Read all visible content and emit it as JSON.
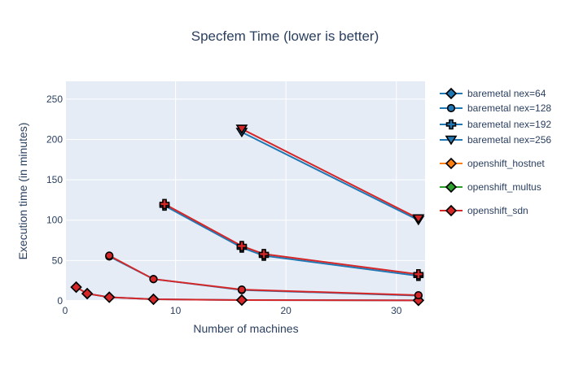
{
  "chart_data": {
    "type": "line",
    "title": "Specfem Time (lower is better)",
    "xlabel": "Number of machines",
    "ylabel": "Execution time (in minutes)",
    "xlim": [
      0,
      32.6
    ],
    "ylim": [
      0,
      272
    ],
    "x_ticks": [
      0,
      10,
      20,
      30
    ],
    "y_ticks": [
      0,
      50,
      100,
      150,
      200,
      250
    ],
    "grid": true,
    "legend_position": "right",
    "colors": {
      "plot_background": "#e5ecf6",
      "grid": "#ffffff",
      "baremetal": "#1f77b4",
      "openshift_hostnet": "#ff7f0e",
      "openshift_multus": "#2ca02c",
      "openshift_sdn": "#d62728",
      "marker_edge": "#000000",
      "text": "#2a3f5f"
    },
    "legend": [
      {
        "label": "baremetal nex=64",
        "color": "#1f77b4",
        "symbol": "diamond"
      },
      {
        "label": "baremetal nex=128",
        "color": "#1f77b4",
        "symbol": "circle"
      },
      {
        "label": "baremetal nex=192",
        "color": "#1f77b4",
        "symbol": "cross"
      },
      {
        "label": "baremetal nex=256",
        "color": "#1f77b4",
        "symbol": "triangle-down"
      },
      {
        "label": "openshift_hostnet",
        "color": "#ff7f0e",
        "symbol": "diamond"
      },
      {
        "label": "openshift_multus",
        "color": "#2ca02c",
        "symbol": "diamond"
      },
      {
        "label": "openshift_sdn",
        "color": "#d62728",
        "symbol": "diamond"
      }
    ],
    "series": [
      {
        "group": "baremetal",
        "nex": 64,
        "symbol": "diamond",
        "color": "#1f77b4",
        "x": [
          1,
          2,
          4,
          8,
          16,
          32
        ],
        "y": [
          17,
          9,
          4.5,
          2,
          1,
          0.6
        ]
      },
      {
        "group": "baremetal",
        "nex": 128,
        "symbol": "circle",
        "color": "#1f77b4",
        "x": [
          4,
          8,
          16,
          32
        ],
        "y": [
          55,
          27,
          13.5,
          6.5
        ]
      },
      {
        "group": "baremetal",
        "nex": 192,
        "symbol": "cross",
        "color": "#1f77b4",
        "x": [
          9,
          16,
          18,
          32
        ],
        "y": [
          118,
          66,
          56,
          31
        ]
      },
      {
        "group": "baremetal",
        "nex": 256,
        "symbol": "triangle-down",
        "color": "#1f77b4",
        "x": [
          16,
          32
        ],
        "y": [
          209,
          100
        ]
      },
      {
        "group": "openshift_sdn",
        "nex": 64,
        "symbol": "diamond",
        "color": "#d62728",
        "x": [
          1,
          2,
          4,
          8,
          16,
          32
        ],
        "y": [
          17,
          9,
          4.5,
          2,
          1,
          0.6
        ]
      },
      {
        "group": "openshift_sdn",
        "nex": 128,
        "symbol": "circle",
        "color": "#d62728",
        "x": [
          4,
          8,
          16,
          32
        ],
        "y": [
          56,
          27,
          14,
          7
        ]
      },
      {
        "group": "openshift_sdn",
        "nex": 192,
        "symbol": "cross",
        "color": "#d62728",
        "x": [
          9,
          16,
          18,
          32
        ],
        "y": [
          120,
          68,
          58,
          33
        ]
      },
      {
        "group": "openshift_sdn",
        "nex": 256,
        "symbol": "triangle-down",
        "color": "#d62728",
        "x": [
          16,
          32
        ],
        "y": [
          213,
          102
        ]
      }
    ]
  }
}
